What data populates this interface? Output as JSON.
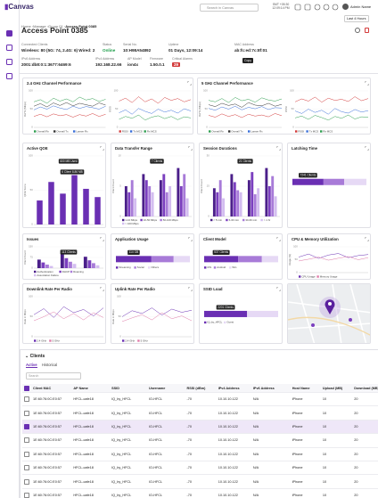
{
  "topbar": {
    "brand": "Canvas",
    "search": "Search in Canvas",
    "time": "SMT +05:30 12:09:14 PM",
    "user": "Admin Name"
  },
  "breadcrumb": [
    "Home",
    "Manage",
    "Group 01",
    "Access Point 0385"
  ],
  "range": "Last 4 Hours",
  "title": "Access Point 0385",
  "info": [
    {
      "label": "Connected Clients",
      "value": "Wireless: 80 (5G: 74, 2.4G: 6)  Wired: 2"
    },
    {
      "label": "Status",
      "value": "Online"
    },
    {
      "label": "Serial No.",
      "value": "10:H98A54892"
    },
    {
      "label": "Uptime",
      "value": "01 Days, 12:09:14"
    },
    {
      "label": "MAC Address",
      "value": "ab:fc:ed:7c:8f:01"
    },
    {
      "label": "IPv6 Address",
      "value": "2001:db8:0:1:3677:6469:6"
    },
    {
      "label": "IPv4 Address",
      "value": "192.168.22.66"
    },
    {
      "label": "AP Model",
      "value": "ion4x"
    },
    {
      "label": "Firmware",
      "value": "1.50.0.1"
    },
    {
      "label": "Critical Alarms",
      "value": "29"
    }
  ],
  "copy_tooltip": "Copy",
  "cards": [
    {
      "title": "2.4 GHz Channel Performance",
      "charts": [
        {
          "type": "line",
          "ylabel": "Rx/Tx (Mbps)",
          "ylim": [
            0,
            100
          ],
          "yticks": [
            0,
            50,
            100
          ],
          "series": [
            {
              "name": "Overall Rx",
              "color": "#2e9e4f",
              "values": [
                70,
                76,
                66,
                80,
                72,
                78,
                70,
                83,
                75,
                79,
                71,
                77
              ]
            },
            {
              "name": "Overall Tx",
              "color": "#333333",
              "values": [
                58,
                65,
                56,
                67,
                60,
                68,
                59,
                66,
                62,
                58,
                67,
                61
              ]
            },
            {
              "name": "Lanser Rx",
              "color": "#3a6fd8",
              "values": [
                48,
                56,
                50,
                59,
                53,
                49,
                58,
                52,
                57,
                54,
                50,
                58
              ]
            },
            {
              "name": "Lanser Tx",
              "color": "#d33b3b",
              "values": [
                30,
                36,
                29,
                37,
                32,
                35,
                28,
                35,
                31,
                38,
                30,
                36
              ]
            }
          ]
        },
        {
          "type": "line",
          "ylabel": "RSSI",
          "ylim": [
            0,
            100
          ],
          "yticks": [
            0,
            50,
            100
          ],
          "series": [
            {
              "name": "RSSI",
              "color": "#d33b3b",
              "values": [
                72,
                80,
                68,
                84,
                70,
                78,
                66,
                82,
                74,
                79,
                70,
                76
              ]
            },
            {
              "name": "Tx MCS",
              "color": "#3a6fd8",
              "values": [
                40,
                48,
                36,
                52,
                44,
                38,
                50,
                42,
                47,
                39,
                51,
                45
              ]
            },
            {
              "name": "Rx MCS",
              "color": "#2e9e4f",
              "values": [
                22,
                30,
                25,
                34,
                20,
                28,
                32,
                24,
                30,
                21,
                29,
                26
              ]
            }
          ]
        }
      ]
    },
    {
      "title": "5 GHz Channel Performance",
      "charts": [
        {
          "type": "line",
          "ylabel": "Rx/Tx (Mbps)",
          "ylim": [
            0,
            100
          ],
          "yticks": [
            0,
            50,
            100
          ],
          "series": [
            {
              "name": "Overall Rx",
              "color": "#2e9e4f",
              "values": [
                74,
                70,
                79,
                68,
                82,
                73,
                77,
                69,
                81,
                75,
                72,
                78
              ]
            },
            {
              "name": "Overall Tx",
              "color": "#333333",
              "values": [
                62,
                57,
                66,
                60,
                64,
                55,
                68,
                61,
                59,
                66,
                58,
                63
              ]
            },
            {
              "name": "Lanser Rx",
              "color": "#3a6fd8",
              "values": [
                52,
                47,
                56,
                50,
                58,
                48,
                55,
                51,
                57,
                49,
                54,
                53
              ]
            },
            {
              "name": "Lanser Tx",
              "color": "#d33b3b",
              "values": [
                33,
                28,
                37,
                30,
                35,
                27,
                36,
                31,
                34,
                29,
                38,
                32
              ]
            }
          ]
        },
        {
          "type": "line",
          "ylabel": "RSSI",
          "ylim": [
            0,
            100
          ],
          "yticks": [
            0,
            50,
            100
          ],
          "series": [
            {
              "name": "RSSI",
              "color": "#d33b3b",
              "values": [
                70,
                78,
                72,
                83,
                69,
                80,
                74,
                77,
                71,
                84,
                73,
                79
              ]
            },
            {
              "name": "Tx MCS",
              "color": "#3a6fd8",
              "values": [
                45,
                38,
                50,
                41,
                47,
                36,
                52,
                43,
                39,
                49,
                42,
                46
              ]
            },
            {
              "name": "Rx MCS",
              "color": "#2e9e4f",
              "values": [
                26,
                31,
                22,
                33,
                27,
                20,
                30,
                25,
                34,
                23,
                29,
                28
              ]
            }
          ]
        }
      ]
    },
    {
      "title": "Active QOE",
      "chart": {
        "type": "bar",
        "ylabel": "QOE Score",
        "ylim": [
          0,
          100
        ],
        "yticks": [
          0,
          50,
          100
        ],
        "color": "#6a2fb3",
        "values": [
          35,
          62,
          45,
          72,
          52,
          40
        ],
        "tooltips": [
          "600 MB Used",
          "6 Client 8.86 MB"
        ]
      }
    },
    {
      "title": "Data Transfer Range",
      "chart": {
        "type": "bar",
        "ylabel": "Client Count",
        "ylim": [
          0,
          10
        ],
        "yticks": [
          0,
          5,
          10
        ],
        "tooltips": [
          "7 Clients"
        ],
        "series": [
          {
            "name": "1-10 Mbps",
            "color": "#4b1f8a",
            "values": [
              5,
              7,
              6,
              8
            ]
          },
          {
            "name": "10-50 Mbps",
            "color": "#7b3fbf",
            "values": [
              4,
              6,
              7,
              5
            ]
          },
          {
            "name": "50-100 Mbps",
            "color": "#a87bd8",
            "values": [
              6,
              5,
              4,
              7
            ]
          },
          {
            "name": "> 100 Mbps",
            "color": "#d3bdf0",
            "values": [
              3,
              4,
              5,
              3
            ]
          }
        ]
      }
    },
    {
      "title": "Session Durations",
      "chart": {
        "type": "bar",
        "ylabel": "Client Count",
        "ylim": [
          0,
          30
        ],
        "yticks": [
          0,
          15,
          30
        ],
        "tooltips": [
          "21 Clients"
        ],
        "series": [
          {
            "name": "< 5 min",
            "color": "#4b1f8a",
            "values": [
              14,
              21,
              18,
              24
            ]
          },
          {
            "name": "5-30 min",
            "color": "#7b3fbf",
            "values": [
              12,
              17,
              22,
              15
            ]
          },
          {
            "name": "30-60 min",
            "color": "#a87bd8",
            "values": [
              18,
              13,
              11,
              20
            ]
          },
          {
            "name": "> 1 hr",
            "color": "#d3bdf0",
            "values": [
              9,
              12,
              14,
              10
            ]
          }
        ]
      }
    },
    {
      "title": "Latching Time",
      "chart": {
        "type": "hbar",
        "xlim": [
          0,
          100
        ],
        "tooltips": [
          "7241 Clients"
        ],
        "series": [
          {
            "color": "#6a2fb3",
            "value": 42
          },
          {
            "color": "#a87bd8",
            "value": 28
          },
          {
            "color": "#e6d9f5",
            "value": 30
          }
        ]
      }
    },
    {
      "title": "Issues",
      "chart": {
        "type": "bar",
        "ylabel": "Client Count",
        "ylim": [
          0,
          150
        ],
        "yticks": [
          0,
          75,
          150
        ],
        "tooltips": [
          "113 Clients"
        ],
        "series": [
          {
            "name": "Authentication",
            "color": "#4b1f8a",
            "values": [
              60,
              113,
              80
            ]
          },
          {
            "name": "DHCP",
            "color": "#7b3fbf",
            "values": [
              40,
              70,
              55
            ]
          },
          {
            "name": "Roaming",
            "color": "#a87bd8",
            "values": [
              25,
              45,
              35
            ]
          },
          {
            "name": "Association Failure",
            "color": "#d3bdf0",
            "values": [
              15,
              30,
              20
            ]
          }
        ]
      }
    },
    {
      "title": "Application Usage",
      "chart": {
        "type": "hbar",
        "xlim": [
          0,
          100
        ],
        "tooltips": [
          "114 GB"
        ],
        "series": [
          {
            "name": "Streaming",
            "color": "#6a2fb3",
            "value": 48
          },
          {
            "name": "Social",
            "color": "#a87bd8",
            "value": 30
          },
          {
            "name": "Others",
            "color": "#e6d9f5",
            "value": 22
          }
        ]
      }
    },
    {
      "title": "Client Model",
      "chart": {
        "type": "hbar",
        "xlim": [
          0,
          100
        ],
        "tooltips": [
          "537 Clients"
        ],
        "series": [
          {
            "name": "iOS",
            "color": "#6a2fb3",
            "value": 46
          },
          {
            "name": "Android",
            "color": "#a87bd8",
            "value": 32
          },
          {
            "name": "Win",
            "color": "#e6d9f5",
            "value": 22
          }
        ]
      }
    },
    {
      "title": "CPU & Memory Utilization",
      "chart": {
        "type": "line",
        "ylabel": "Usage (%)",
        "ylim": [
          0,
          100
        ],
        "yticks": [
          0,
          50,
          100
        ],
        "series": [
          {
            "name": "CPU Usage",
            "color": "#6a2fb3",
            "values": [
              60,
              72,
              55,
              68,
              74,
              58,
              66,
              70
            ]
          },
          {
            "name": "Memory Usage",
            "color": "#e07aa8",
            "values": [
              45,
              52,
              60,
              48,
              56,
              62,
              50,
              58
            ]
          }
        ]
      }
    },
    {
      "title": "Downlink Rate Per Radio",
      "chart": {
        "type": "line",
        "ylabel": "Rate in Mbps",
        "ylim": [
          0,
          100
        ],
        "yticks": [
          0,
          50,
          100
        ],
        "series": [
          {
            "name": "2.4 GHz",
            "color": "#6a2fb3",
            "values": [
              55,
              70,
              48,
              75,
              60,
              68,
              52,
              72
            ]
          },
          {
            "name": "5 GHz",
            "color": "#e07aa8",
            "values": [
              40,
              50,
              62,
              45,
              58,
              42,
              60,
              48
            ]
          }
        ]
      }
    },
    {
      "title": "Uplink Rate Per Radio",
      "chart": {
        "type": "line",
        "ylabel": "Rate in Mbps",
        "ylim": [
          0,
          100
        ],
        "yticks": [
          0,
          50,
          100
        ],
        "series": [
          {
            "name": "2.4 GHz",
            "color": "#6a2fb3",
            "values": [
              50,
              65,
              58,
              72,
              54,
              69,
              61,
              66
            ]
          },
          {
            "name": "5 GHz",
            "color": "#e07aa8",
            "values": [
              38,
              47,
              55,
              42,
              60,
              45,
              52,
              40
            ]
          }
        ]
      }
    },
    {
      "title": "SSID Load",
      "chart": {
        "type": "hbar",
        "xlim": [
          0,
          100
        ],
        "tooltips": [
          "2201 Clients"
        ],
        "series": [
          {
            "name": "IQ_by_HFCL",
            "color": "#6a2fb3",
            "value": 58
          },
          {
            "name": "Guest",
            "color": "#e6d9f5",
            "value": 42
          }
        ]
      }
    }
  ],
  "clients": {
    "title": "Clients",
    "tabs": [
      "Active",
      "Historical"
    ],
    "search": "Search",
    "columns": [
      "Client MAC",
      "AP Name",
      "SSID",
      "Username",
      "RSSI (dBm)",
      "IPv4 Address",
      "IPv6 Address",
      "Host Name",
      "Upload (MB)",
      "Download (MB)"
    ],
    "rows": [
      [
        "1E:60:76:0C:E0:57",
        "HFCL-cafe18",
        "IQ_by_HFCL",
        "IO-HFCL",
        "-70",
        "10.10.10.122",
        "N/A",
        "iPhone",
        "10",
        "20"
      ],
      [
        "1E:60:76:0C:E0:57",
        "HFCL-cafe18",
        "IQ_by_HFCL",
        "IO-HFCL",
        "-70",
        "10.10.10.122",
        "N/A",
        "iPhone",
        "10",
        "20"
      ],
      [
        "1E:60:76:0C:E0:57",
        "HFCL-cafe18",
        "IQ_by_HFCL",
        "IO-HFCL",
        "-70",
        "10.10.10.122",
        "N/A",
        "iPhone",
        "10",
        "20"
      ],
      [
        "1E:60:76:0C:E0:57",
        "HFCL-cafe18",
        "IQ_by_HFCL",
        "IO-HFCL",
        "-70",
        "10.10.10.122",
        "N/A",
        "iPhone",
        "10",
        "20"
      ],
      [
        "1E:60:76:0C:E0:57",
        "HFCL-cafe18",
        "IQ_by_HFCL",
        "IO-HFCL",
        "-70",
        "10.10.10.122",
        "N/A",
        "iPhone",
        "10",
        "20"
      ],
      [
        "1E:60:76:0C:E0:57",
        "HFCL-cafe18",
        "IQ_by_HFCL",
        "IO-HFCL",
        "-70",
        "10.10.10.122",
        "N/A",
        "iPhone",
        "10",
        "20"
      ],
      [
        "1E:60:76:0C:E0:57",
        "HFCL-cafe18",
        "IQ_by_HFCL",
        "IO-HFCL",
        "-70",
        "10.10.10.122",
        "N/A",
        "iPhone",
        "10",
        "20"
      ],
      [
        "1E:60:76:0C:E0:57",
        "HFCL-cafe18",
        "IQ_by_HFCL",
        "IO-HFCL",
        "-70",
        "10.10.10.122",
        "N/A",
        "iPhone",
        "10",
        "20"
      ]
    ]
  }
}
